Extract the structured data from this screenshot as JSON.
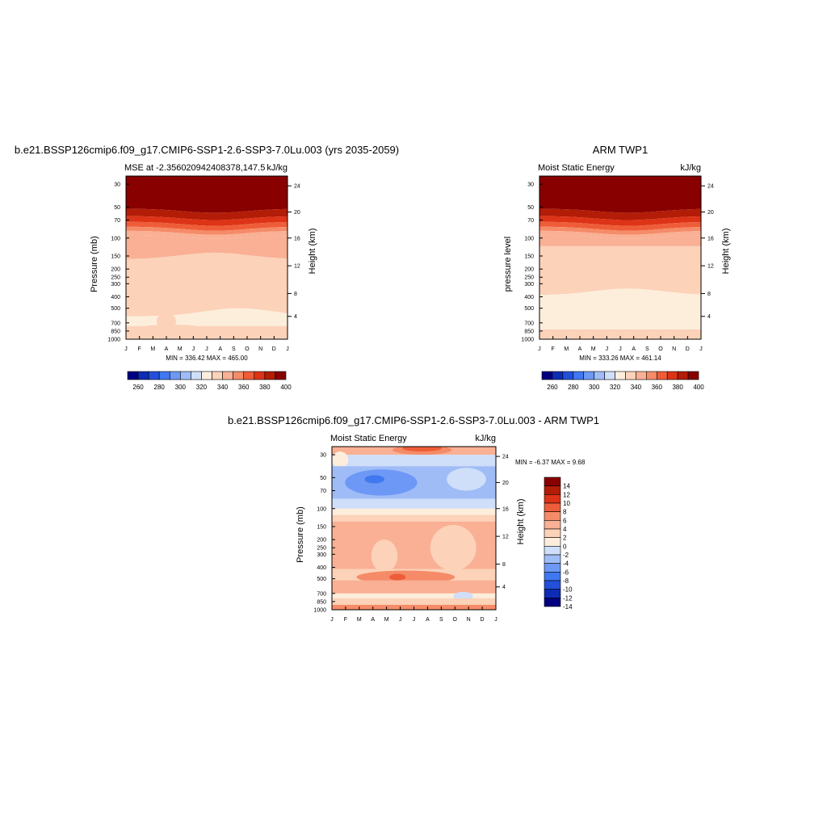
{
  "colors": {
    "mse_scale": [
      "#000080",
      "#0d2cb5",
      "#2350d9",
      "#3f78f0",
      "#6d98f5",
      "#9fbcf7",
      "#cfdff9",
      "#fdeedc",
      "#fcd2b9",
      "#f9b094",
      "#f58b68",
      "#ee5d38",
      "#dd3317",
      "#b31c06",
      "#880000"
    ],
    "diff_scale": [
      "#000080",
      "#0d2cb5",
      "#2350d9",
      "#3f78f0",
      "#6d98f5",
      "#9fbcf7",
      "#cfdff9",
      "#fdeedc",
      "#fcd2b9",
      "#f9b094",
      "#f58b68",
      "#ee5d38",
      "#dd3317",
      "#b31c06",
      "#880000"
    ]
  },
  "chart_data": [
    {
      "id": "model",
      "type": "heatmap",
      "title": "b.e21.BSSP126cmip6.f09_g17.CMIP6-SSP1-2.6-SSP3-7.0Lu.003 (yrs 2035-2059)",
      "left_label": "MSE at -2.356020942408378,147.5",
      "right_label": "kJ/kg",
      "ylabel": "Pressure (mb)",
      "ylabel_right": "Height (km)",
      "months": [
        "J",
        "F",
        "M",
        "A",
        "M",
        "J",
        "J",
        "A",
        "S",
        "O",
        "N",
        "D",
        "J"
      ],
      "pressure_ticks": [
        "30",
        "50",
        "70",
        "100",
        "150",
        "200",
        "250",
        "300",
        "400",
        "500",
        "700",
        "850",
        "1000"
      ],
      "height_ticks": [
        "4",
        "8",
        "12",
        "16",
        "20",
        "24"
      ],
      "min_max": "MIN = 336.42 MAX = 465.00",
      "levels": [
        260,
        270,
        280,
        290,
        300,
        310,
        320,
        330,
        340,
        350,
        360,
        370,
        380,
        390,
        400
      ],
      "colorbar_labels": [
        "260",
        "280",
        "300",
        "320",
        "340",
        "360",
        "380",
        "400"
      ]
    },
    {
      "id": "obs",
      "type": "heatmap",
      "title": "ARM TWP1",
      "left_label": "Moist Static Energy",
      "right_label": "kJ/kg",
      "ylabel": "pressure level",
      "ylabel_right": "Height (km)",
      "months": [
        "J",
        "F",
        "M",
        "A",
        "M",
        "J",
        "J",
        "A",
        "S",
        "O",
        "N",
        "D",
        "J"
      ],
      "pressure_ticks": [
        "30",
        "50",
        "70",
        "100",
        "150",
        "200",
        "250",
        "300",
        "400",
        "500",
        "700",
        "850",
        "1000"
      ],
      "height_ticks": [
        "4",
        "8",
        "12",
        "16",
        "20",
        "24"
      ],
      "min_max": "MIN = 333.26 MAX = 461.14",
      "levels": [
        260,
        270,
        280,
        290,
        300,
        310,
        320,
        330,
        340,
        350,
        360,
        370,
        380,
        390,
        400
      ],
      "colorbar_labels": [
        "260",
        "280",
        "300",
        "320",
        "340",
        "360",
        "380",
        "400"
      ]
    },
    {
      "id": "diff",
      "type": "heatmap",
      "title": "b.e21.BSSP126cmip6.f09_g17.CMIP6-SSP1-2.6-SSP3-7.0Lu.003 - ARM TWP1",
      "left_label": "Moist Static Energy",
      "right_label": "kJ/kg",
      "ylabel": "Pressure (mb)",
      "ylabel_right": "Height (km)",
      "months": [
        "J",
        "F",
        "M",
        "A",
        "M",
        "J",
        "J",
        "A",
        "S",
        "O",
        "N",
        "D",
        "J"
      ],
      "pressure_ticks": [
        "30",
        "50",
        "70",
        "100",
        "150",
        "200",
        "250",
        "300",
        "400",
        "500",
        "700",
        "850",
        "1000"
      ],
      "height_ticks": [
        "4",
        "8",
        "12",
        "16",
        "20",
        "24"
      ],
      "min_max": "MIN =  -6.37 MAX =   9.68",
      "levels": [
        -14,
        -12,
        -10,
        -8,
        -6,
        -4,
        -2,
        0,
        2,
        4,
        6,
        8,
        10,
        12,
        14
      ],
      "colorbar_labels": [
        "14",
        "12",
        "10",
        "8",
        "6",
        "4",
        "2",
        "0",
        "-2",
        "-4",
        "-6",
        "-8",
        "-10",
        "-12",
        "-14"
      ]
    }
  ]
}
